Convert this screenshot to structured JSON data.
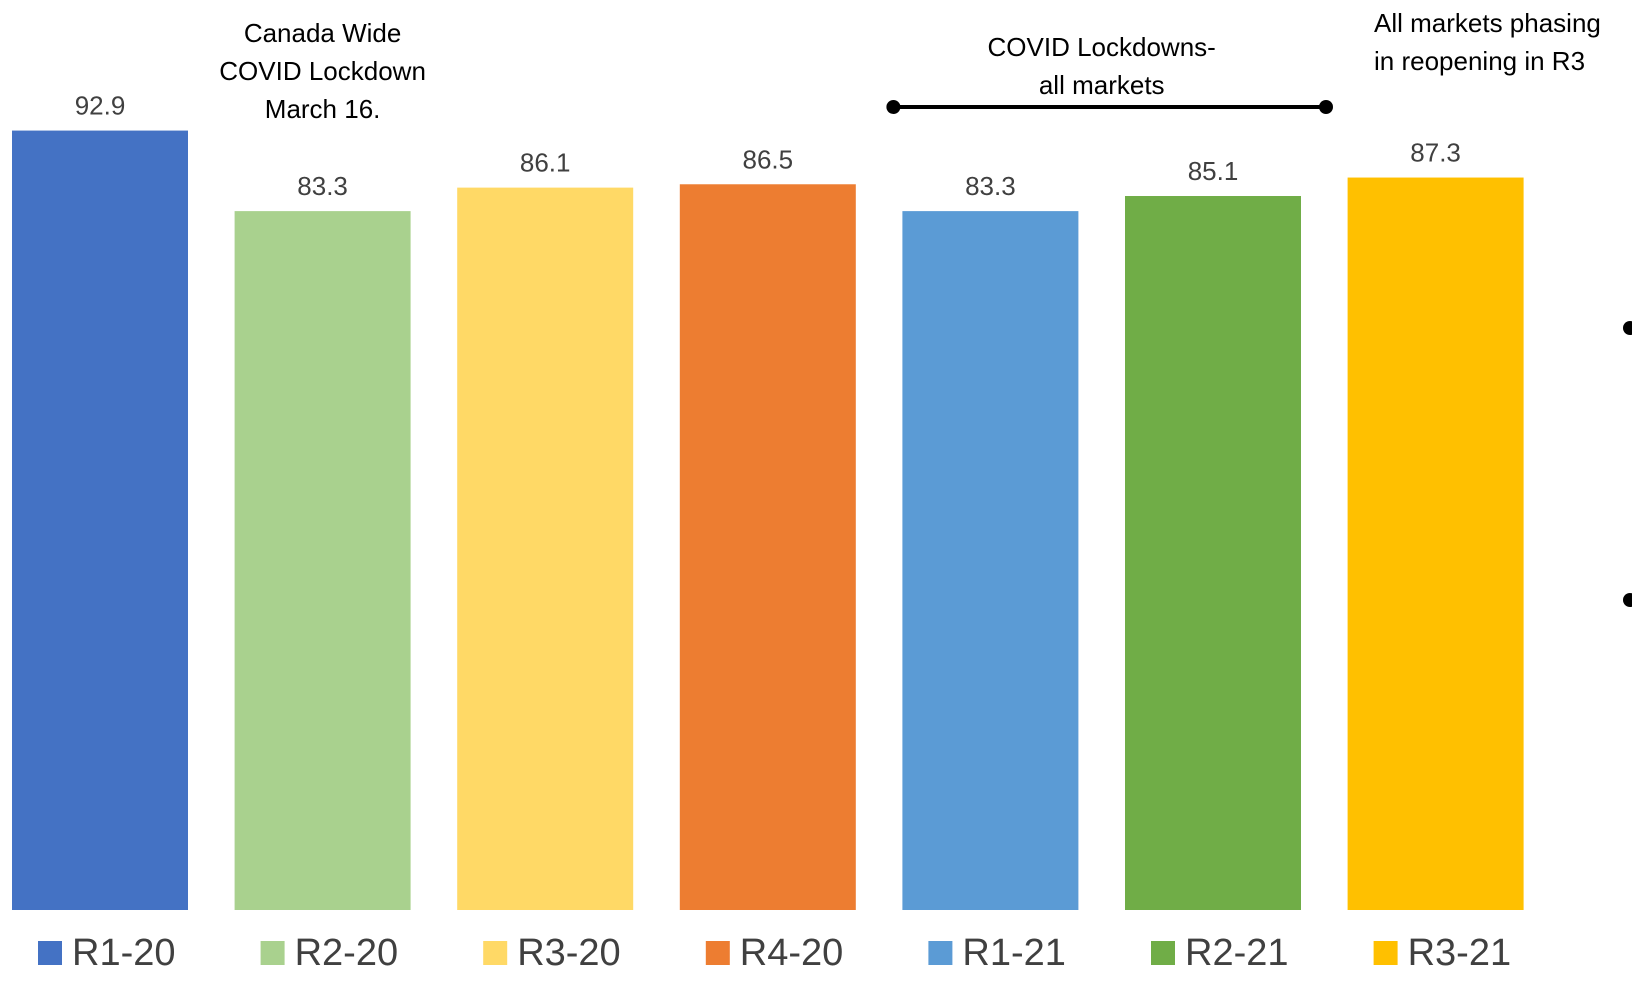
{
  "chart_data": {
    "type": "bar",
    "categories": [
      "R1-20",
      "R2-20",
      "R3-20",
      "R4-20",
      "R1-21",
      "R2-21",
      "R3-21"
    ],
    "values": [
      92.9,
      83.3,
      86.1,
      86.5,
      83.3,
      85.1,
      87.3
    ],
    "value_labels": [
      "92.9",
      "83.3",
      "86.1",
      "86.5",
      "83.3",
      "85.1",
      "87.3"
    ],
    "colors": [
      "#4472C4",
      "#A9D18E",
      "#FFD966",
      "#ED7D31",
      "#5B9BD5",
      "#70AD47",
      "#FFC000"
    ],
    "title": "",
    "xlabel": "",
    "ylabel": "",
    "ylim": [
      0,
      100
    ],
    "grid": false,
    "legend_position": "bottom",
    "legend": [
      "R1-20",
      "R2-20",
      "R3-20",
      "R4-20",
      "R1-21",
      "R2-21",
      "R3-21"
    ],
    "annotations": [
      {
        "lines": [
          "Canada Wide",
          "COVID Lockdown",
          "March 16."
        ]
      },
      {
        "lines": [
          "COVID Lockdowns-",
          "all markets"
        ]
      },
      {
        "lines": [
          "All markets phasing",
          "in reopening in R3"
        ]
      }
    ],
    "bracket": {
      "from_category": "R1-21",
      "to_category": "R2-21"
    }
  }
}
